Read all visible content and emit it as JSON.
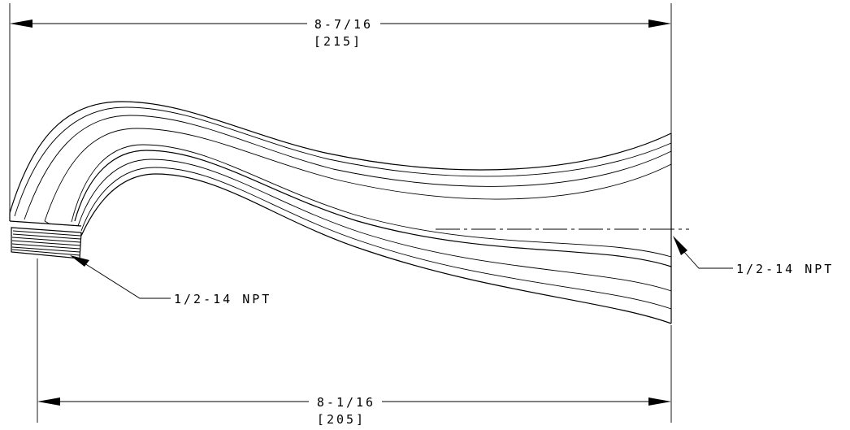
{
  "dimensions": {
    "overall": {
      "imperial": "8-7/16",
      "metric": "[215]"
    },
    "projection": {
      "imperial": "8-1/16",
      "metric": "[205]"
    }
  },
  "callouts": {
    "inlet_thread": "1/2-14 NPT",
    "outlet_thread": "1/2-14 NPT"
  }
}
